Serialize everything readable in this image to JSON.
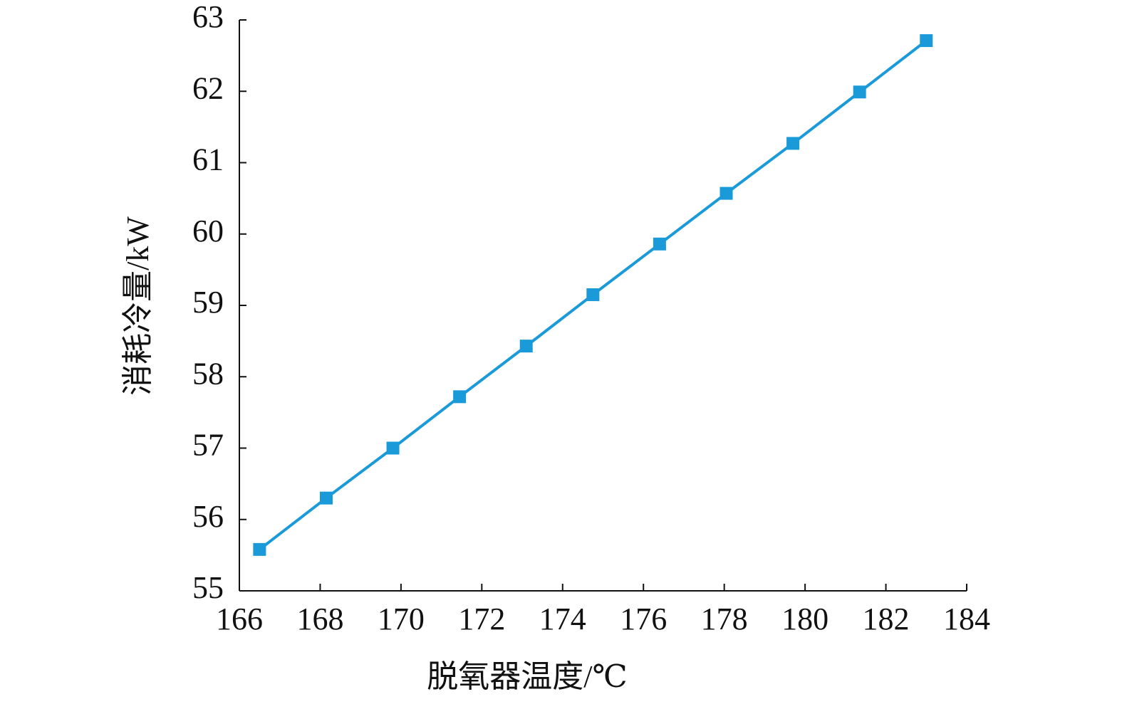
{
  "chart_data": {
    "type": "line",
    "x_label": "脱氧器温度/℃",
    "y_label": "消耗冷量/kW",
    "x": [
      166.5,
      168.15,
      169.8,
      171.45,
      173.1,
      174.75,
      176.4,
      178.05,
      179.7,
      181.35,
      183.0
    ],
    "values": [
      55.58,
      56.3,
      57.0,
      57.72,
      58.43,
      59.15,
      59.86,
      60.57,
      61.27,
      61.99,
      62.71
    ],
    "color": "#1a9ad9",
    "marker": "square",
    "xlim": [
      166,
      184
    ],
    "xticks": [
      166,
      168,
      170,
      172,
      174,
      176,
      178,
      180,
      182,
      184
    ],
    "ylim": [
      55,
      63
    ],
    "yticks": [
      55,
      56,
      57,
      58,
      59,
      60,
      61,
      62,
      63
    ],
    "grid": false
  }
}
